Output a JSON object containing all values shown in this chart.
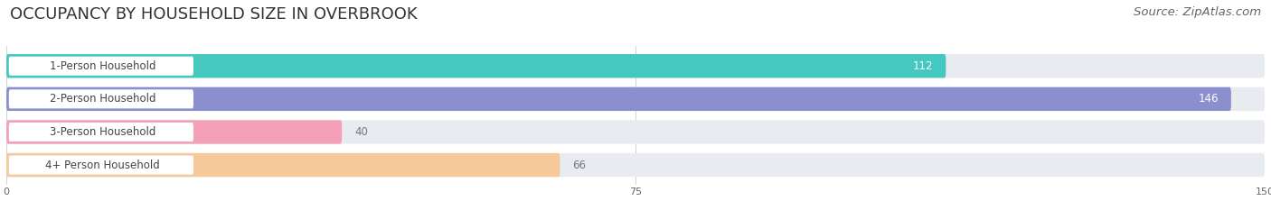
{
  "title": "OCCUPANCY BY HOUSEHOLD SIZE IN OVERBROOK",
  "source": "Source: ZipAtlas.com",
  "categories": [
    "1-Person Household",
    "2-Person Household",
    "3-Person Household",
    "4+ Person Household"
  ],
  "values": [
    112,
    146,
    40,
    66
  ],
  "bar_colors": [
    "#45C8C0",
    "#8B8FCE",
    "#F4A0B8",
    "#F5C99A"
  ],
  "bar_bg_color": "#E8ECF0",
  "label_pill_color": "#FFFFFF",
  "xlim": [
    0,
    150
  ],
  "xticks": [
    0,
    75,
    150
  ],
  "label_color_inside": "#FFFFFF",
  "label_color_outside": "#777777",
  "title_fontsize": 13,
  "source_fontsize": 9.5,
  "bar_label_fontsize": 8.5,
  "category_fontsize": 8.5,
  "bar_height": 0.72,
  "background_color": "#FFFFFF"
}
